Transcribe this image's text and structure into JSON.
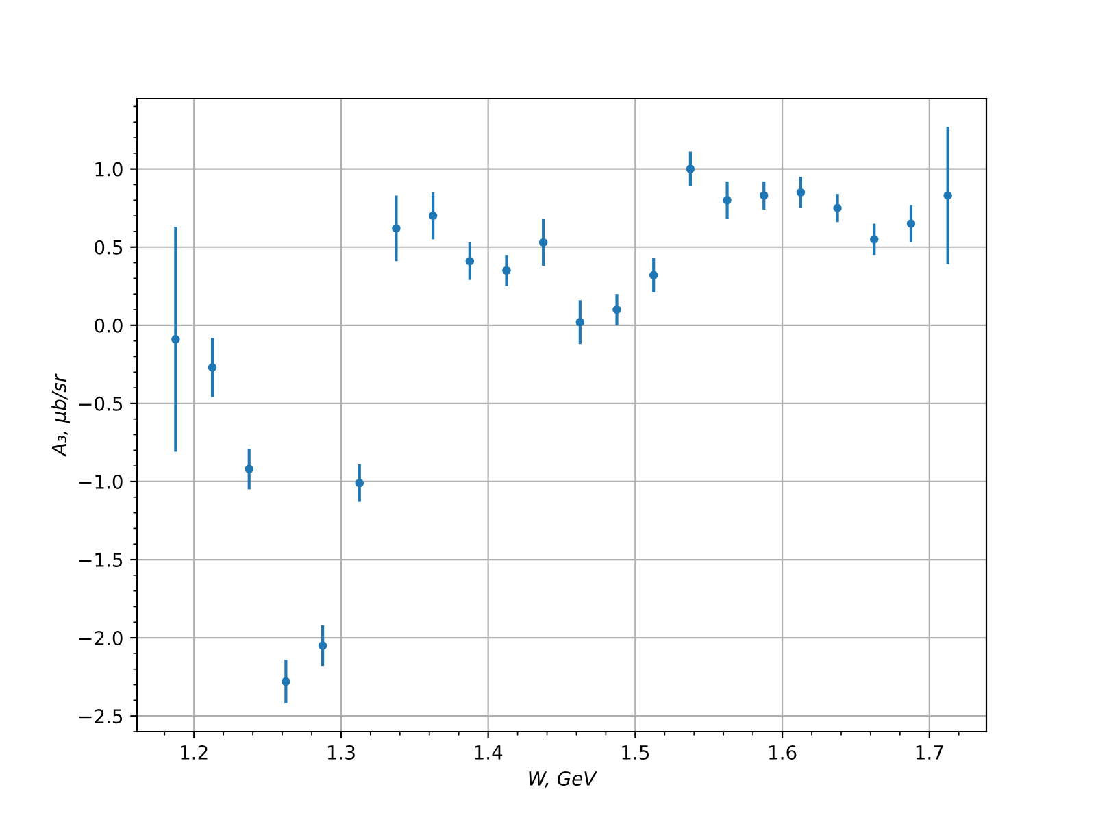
{
  "chart_data": {
    "type": "scatter",
    "xlabel": "W, GeV",
    "ylabel": "A₃, μb/sr",
    "x": [
      1.1875,
      1.2125,
      1.2375,
      1.2625,
      1.2875,
      1.3125,
      1.3375,
      1.3625,
      1.3875,
      1.4125,
      1.4375,
      1.4625,
      1.4875,
      1.5125,
      1.5375,
      1.5625,
      1.5875,
      1.6125,
      1.6375,
      1.6625,
      1.6875,
      1.7125
    ],
    "series": [
      {
        "color": "#1f77b4",
        "values": [
          -0.09,
          -0.27,
          -0.92,
          -2.28,
          -2.05,
          -1.01,
          0.62,
          0.7,
          0.41,
          0.35,
          0.53,
          0.02,
          0.1,
          0.32,
          1.0,
          0.8,
          0.83,
          0.85,
          0.75,
          0.55,
          0.65,
          0.83
        ],
        "errors": [
          0.72,
          0.19,
          0.13,
          0.14,
          0.13,
          0.12,
          0.21,
          0.15,
          0.12,
          0.1,
          0.15,
          0.14,
          0.1,
          0.11,
          0.11,
          0.12,
          0.09,
          0.1,
          0.09,
          0.1,
          0.12,
          0.44
        ]
      }
    ],
    "xlim": [
      1.16125,
      1.73875
    ],
    "ylim": [
      -2.6,
      1.45
    ],
    "xticks": [
      1.2,
      1.3,
      1.4,
      1.5,
      1.6,
      1.7
    ],
    "yticks": [
      {
        "value": -2.5,
        "label": "−2.5"
      },
      {
        "value": -2,
        "label": "−2.0"
      },
      {
        "value": -1.5,
        "label": "−1.5"
      },
      {
        "value": -1,
        "label": "−1.0"
      },
      {
        "value": -0.5,
        "label": "−0.5"
      },
      {
        "value": 0,
        "label": "0.0"
      },
      {
        "value": 0.5,
        "label": "0.5"
      },
      {
        "value": 1,
        "label": "1.0"
      }
    ],
    "grid": true,
    "marker": "circle"
  }
}
